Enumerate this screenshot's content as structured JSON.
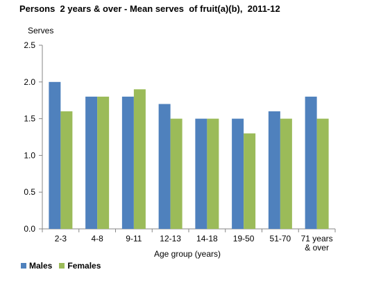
{
  "chart_data": {
    "type": "bar",
    "title": "Persons  2 years & over - Mean serves  of fruit(a)(b),  2011-12",
    "ylabel": "Serves",
    "xlabel": "Age group (years)",
    "ylim": [
      0,
      2.5
    ],
    "yticks": [
      "0.0",
      "0.5",
      "1.0",
      "1.5",
      "2.0",
      "2.5"
    ],
    "categories": [
      [
        "2-3"
      ],
      [
        "4-8"
      ],
      [
        "9-11"
      ],
      [
        "12-13"
      ],
      [
        "14-18"
      ],
      [
        "19-50"
      ],
      [
        "51-70"
      ],
      [
        "71 years",
        "& over"
      ]
    ],
    "series": [
      {
        "name": "Males",
        "color": "#4F81BD",
        "values": [
          2.0,
          1.8,
          1.8,
          1.7,
          1.5,
          1.5,
          1.6,
          1.8
        ]
      },
      {
        "name": "Females",
        "color": "#9BBB59",
        "values": [
          1.6,
          1.8,
          1.9,
          1.5,
          1.5,
          1.3,
          1.5,
          1.5
        ]
      }
    ],
    "grid": false,
    "legend": "bottom-left"
  }
}
